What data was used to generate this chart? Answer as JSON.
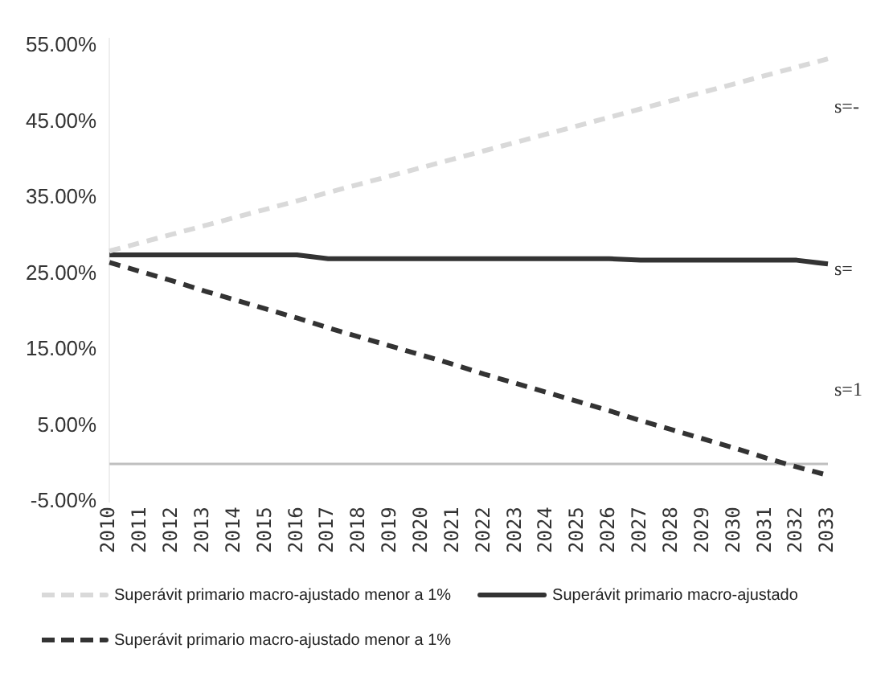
{
  "chart_data": {
    "type": "line",
    "categories": [
      "2010",
      "2011",
      "2012",
      "2013",
      "2014",
      "2015",
      "2016",
      "2017",
      "2018",
      "2019",
      "2020",
      "2021",
      "2022",
      "2023",
      "2024",
      "2025",
      "2026",
      "2027",
      "2028",
      "2029",
      "2030",
      "2031",
      "2032",
      "2033"
    ],
    "series": [
      {
        "name": "Superávit primario macro-ajustado menor a 1%",
        "color": "#d9d9d9",
        "line_style": "dashed",
        "values": [
          28,
          29.1,
          30.2,
          31.3,
          32.4,
          33.5,
          34.6,
          35.7,
          36.8,
          37.9,
          39,
          40.1,
          41.2,
          42.3,
          43.4,
          44.5,
          45.6,
          46.7,
          47.8,
          48.9,
          50,
          51.1,
          52.2,
          53.3
        ]
      },
      {
        "name": "Superávit primario macro-ajustado",
        "color": "#333333",
        "line_style": "solid",
        "values": [
          27.5,
          27.5,
          27.5,
          27.5,
          27.5,
          27.5,
          27.5,
          27,
          27,
          27,
          27,
          27,
          27,
          27,
          27,
          27,
          27,
          26.8,
          26.8,
          26.8,
          26.8,
          26.8,
          26.8,
          26.3
        ]
      },
      {
        "name": "Superávit primario macro-ajustado menor a 1%",
        "color": "#333333",
        "line_style": "dashed",
        "values": [
          26.5,
          25.3,
          24.1,
          22.8,
          21.6,
          20.4,
          19.2,
          17.9,
          16.7,
          15.5,
          14.3,
          13.1,
          11.8,
          10.6,
          9.4,
          8.2,
          7,
          5.7,
          4.5,
          3.3,
          2.1,
          0.8,
          -0.4,
          -1.5
        ]
      }
    ],
    "ylim": [
      -5,
      56
    ],
    "yticks": [
      {
        "value": -5,
        "label": "-5.00%"
      },
      {
        "value": 5,
        "label": "5.00%"
      },
      {
        "value": 15,
        "label": "15.00%"
      },
      {
        "value": 25,
        "label": "25.00%"
      },
      {
        "value": 35,
        "label": "35.00%"
      },
      {
        "value": 45,
        "label": "45.00%"
      },
      {
        "value": 55,
        "label": "55.00%"
      }
    ],
    "annotations": [
      "s=-",
      "s=",
      "s=1"
    ],
    "grid": false,
    "legend": "bottom",
    "marker": "none"
  }
}
